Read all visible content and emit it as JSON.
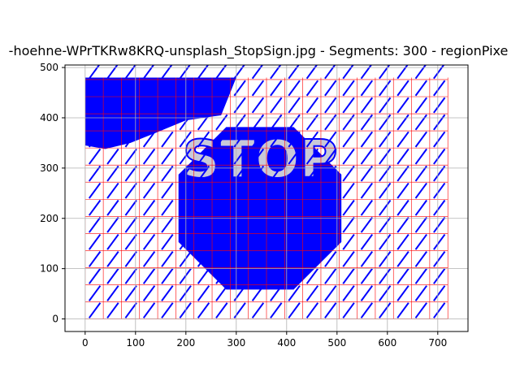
{
  "chart_data": {
    "type": "image",
    "title": "-hoehne-WPrTKRw8KRQ-unsplash_StopSign.jpg - Segments: 300 - regionPixe",
    "sign_text": "STOP",
    "x_ticks": [
      0,
      100,
      200,
      300,
      400,
      500,
      600,
      700
    ],
    "y_ticks": [
      0,
      100,
      200,
      300,
      400,
      500
    ],
    "xlim": [
      -40,
      760
    ],
    "ylim": [
      505,
      -25
    ],
    "image_extent": {
      "x": [
        0,
        720
      ],
      "y": [
        0,
        480
      ]
    },
    "grid": true,
    "segment_count": 300,
    "colors": {
      "segment_boundary": "#ff0000",
      "direction_strokes": "#0000ff",
      "background": "#eeeeee",
      "grid": "#b0b0b0"
    }
  }
}
